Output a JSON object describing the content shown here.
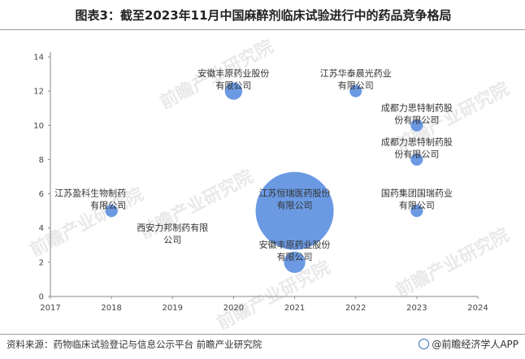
{
  "header": {
    "title": "图表3：截至2023年11月中国麻醉剂临床试验进行中的药品竞争格局"
  },
  "footer": {
    "source": "资料来源：药物临床试验登记与信息公示平台 前瞻产业研究院",
    "brand": "@前瞻经济学人APP"
  },
  "watermark": {
    "text": "前瞻产业研究院"
  },
  "chart_data": {
    "type": "scatter",
    "xlim": [
      2017,
      2024
    ],
    "ylim": [
      0,
      14
    ],
    "x_ticks": [
      "2017",
      "2018",
      "2019",
      "2020",
      "2021",
      "2022",
      "2023",
      "2024"
    ],
    "y_ticks": [
      "0",
      "2",
      "4",
      "6",
      "8",
      "10",
      "12",
      "14"
    ],
    "grid": false,
    "legend": "none",
    "bubble_color": "#5b8fe0",
    "points": [
      {
        "x": 2018,
        "y": 5,
        "size": 1,
        "label": [
          "江苏盈科生物制药",
          "有限公司"
        ],
        "label_anchor": "left"
      },
      {
        "x": 2019,
        "y": 3,
        "size": 0,
        "label": [
          "西安力邦制药有限",
          "公司"
        ],
        "label_anchor": "center"
      },
      {
        "x": 2020,
        "y": 12,
        "size": 2,
        "label": [
          "安徽丰原药业股份",
          "有限公司"
        ],
        "label_anchor": "center"
      },
      {
        "x": 2021,
        "y": 5,
        "size": 40,
        "label": [
          "江苏恒瑞医药股份",
          "有限公司"
        ],
        "label_anchor": "center"
      },
      {
        "x": 2021,
        "y": 2,
        "size": 3,
        "label": [
          "安徽丰原药业股份",
          "有限公司"
        ],
        "label_anchor": "center"
      },
      {
        "x": 2022,
        "y": 12,
        "size": 1,
        "label": [
          "江苏华泰晨光药业",
          "有限公司"
        ],
        "label_anchor": "center"
      },
      {
        "x": 2023,
        "y": 10,
        "size": 1,
        "label": [
          "成都力思特制药股",
          "份有限公司"
        ],
        "label_anchor": "center"
      },
      {
        "x": 2023,
        "y": 8,
        "size": 1,
        "label": [
          "成都力思特制药股",
          "份有限公司"
        ],
        "label_anchor": "center"
      },
      {
        "x": 2023,
        "y": 5,
        "size": 1,
        "label": [
          "国药集团国瑞药业",
          "有限公司"
        ],
        "label_anchor": "center"
      }
    ]
  }
}
